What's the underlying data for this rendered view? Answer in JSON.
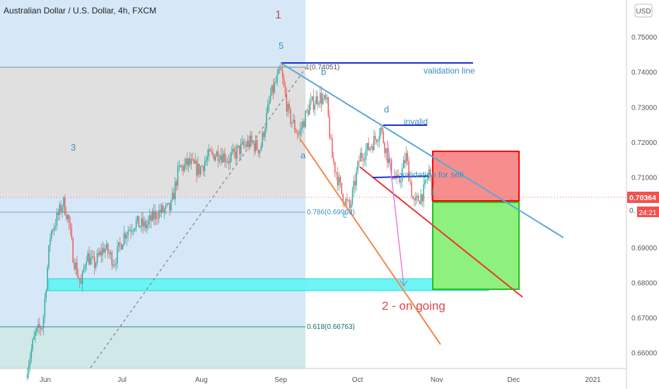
{
  "header": {
    "symbol": "Australian Dollar / U.S. Dollar, 4h, FXCM",
    "currency_button": "USD"
  },
  "price_axis": {
    "labels": [
      "0.75000",
      "0.74000",
      "0.73000",
      "0.72000",
      "0.71000",
      "0.69000",
      "0.68000",
      "0.67000",
      "0.66000"
    ],
    "current_price": "0.70364",
    "countdown": "24:21",
    "partial_level_label": "0."
  },
  "time_axis": {
    "labels": [
      "Jun",
      "Jul",
      "Aug",
      "Sep",
      "Oct",
      "Nov",
      "Dec",
      "2021"
    ]
  },
  "annotations": {
    "wave_1": "1",
    "wave_5": "5",
    "wave_3": "3",
    "wave_a": "a",
    "wave_b": "b",
    "wave_c": "c",
    "wave_d": "d",
    "fib_1": "1(0.74051)",
    "fib_0786": "0.786(0.69968)",
    "fib_0618": "0.618(0.66763)",
    "validation_line": "validation line",
    "invalid": "invalid",
    "validation_for_sell": "validation for sell",
    "wave_2_ongoing": "2 -  on going"
  },
  "colors": {
    "up": "#26a69a",
    "down": "#ef5350",
    "upper_zone": "#d6e8f8",
    "grey_band": "#e0e0e0",
    "lower_band": "#d0e8e8",
    "channel": "#5aa7d9",
    "wedge_upper": "#e33",
    "wedge_lower": "#f08a4b",
    "label_blue": "#3b8fc4",
    "label_red": "#e04848",
    "stop_box": "#f68e8e",
    "target_box": "#8ef07d"
  },
  "chart_data": {
    "type": "candlestick",
    "instrument": "Australian Dollar / U.S. Dollar",
    "timeframe": "4h",
    "source": "FXCM",
    "y_axis": {
      "range": [
        0.6555,
        0.7605
      ],
      "ticks": [
        0.66,
        0.67,
        0.68,
        0.69,
        0.7,
        0.71,
        0.72,
        0.73,
        0.74,
        0.75
      ]
    },
    "x_axis": {
      "ticks": [
        "Jun",
        "Jul",
        "Aug",
        "Sep",
        "Oct",
        "Nov",
        "Dec",
        "2021"
      ]
    },
    "close_path": [
      [
        "May 25",
        0.656
      ],
      [
        "May 28",
        0.665
      ],
      [
        "May 31",
        0.668
      ],
      [
        "Jun 3",
        0.694
      ],
      [
        "Jun 6",
        0.699
      ],
      [
        "Jun 8",
        0.703
      ],
      [
        "Jun 10",
        0.698
      ],
      [
        "Jun 12",
        0.687
      ],
      [
        "Jun 15",
        0.679
      ],
      [
        "Jun 17",
        0.688
      ],
      [
        "Jun 20",
        0.685
      ],
      [
        "Jun 24",
        0.69
      ],
      [
        "Jun 28",
        0.686
      ],
      [
        "Jul 2",
        0.694
      ],
      [
        "Jul 6",
        0.697
      ],
      [
        "Jul 10",
        0.696
      ],
      [
        "Jul 15",
        0.7
      ],
      [
        "Jul 20",
        0.701
      ],
      [
        "Jul 23",
        0.712
      ],
      [
        "Jul 27",
        0.714
      ],
      [
        "Jul 31",
        0.712
      ],
      [
        "Aug 4",
        0.716
      ],
      [
        "Aug 8",
        0.717
      ],
      [
        "Aug 12",
        0.715
      ],
      [
        "Aug 16",
        0.718
      ],
      [
        "Aug 20",
        0.72
      ],
      [
        "Aug 24",
        0.718
      ],
      [
        "Aug 28",
        0.733
      ],
      [
        "Sep 1",
        0.7405
      ],
      [
        "Sep 4",
        0.728
      ],
      [
        "Sep 8",
        0.722
      ],
      [
        "Sep 12",
        0.73
      ],
      [
        "Sep 16",
        0.733
      ],
      [
        "Sep 19",
        0.731
      ],
      [
        "Sep 21",
        0.716
      ],
      [
        "Sep 25",
        0.705
      ],
      [
        "Sep 28",
        0.701
      ],
      [
        "Oct 2",
        0.716
      ],
      [
        "Oct 5",
        0.718
      ],
      [
        "Oct 8",
        0.721
      ],
      [
        "Oct 10",
        0.724
      ],
      [
        "Oct 14",
        0.712
      ],
      [
        "Oct 17",
        0.708
      ],
      [
        "Oct 20",
        0.716
      ],
      [
        "Oct 23",
        0.702
      ],
      [
        "Oct 27",
        0.706
      ],
      [
        "Oct 29",
        0.712
      ],
      [
        "Oct 31",
        0.702
      ]
    ],
    "current_price": 0.70364,
    "fib_levels": [
      {
        "label": "1(0.74051)",
        "price": 0.74051
      },
      {
        "label": "0.786(0.69968)",
        "price": 0.69968
      },
      {
        "label": "0.618(0.66763)",
        "price": 0.66763
      }
    ]
  }
}
